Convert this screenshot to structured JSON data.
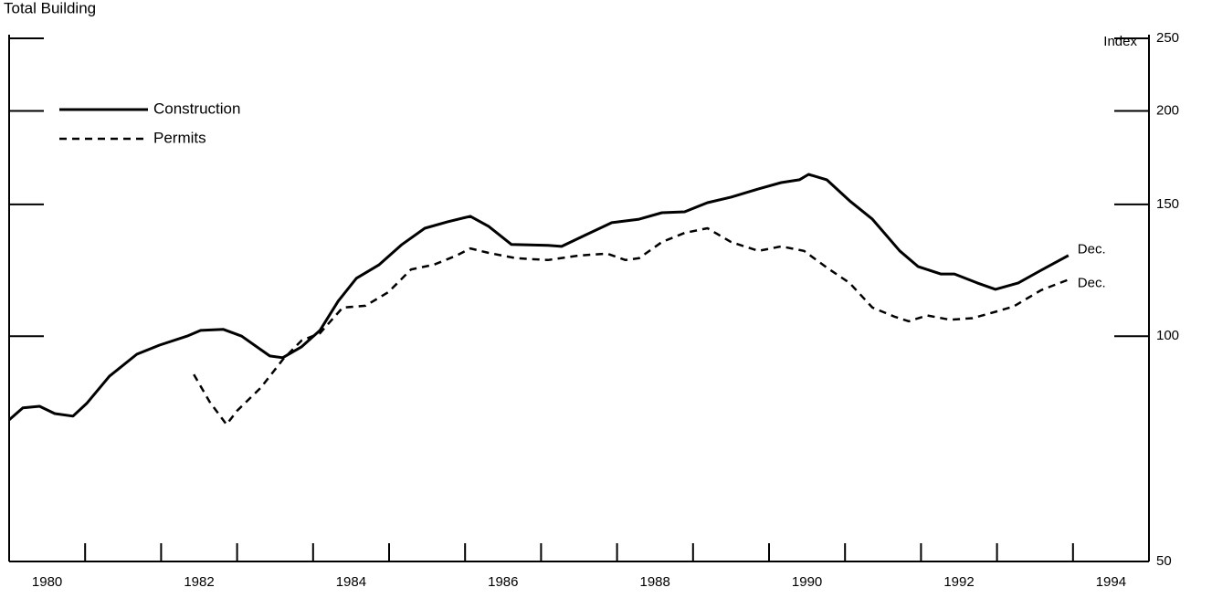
{
  "chart_data": {
    "type": "line",
    "title": "Total Building",
    "y_label": "Index",
    "log_scale": true,
    "xlim": [
      1980,
      1995
    ],
    "xticks": [
      {
        "value": 1980.5,
        "label": "1980"
      },
      {
        "value": 1982.5,
        "label": "1982"
      },
      {
        "value": 1984.5,
        "label": "1984"
      },
      {
        "value": 1986.5,
        "label": "1986"
      },
      {
        "value": 1988.5,
        "label": "1988"
      },
      {
        "value": 1990.5,
        "label": "1990"
      },
      {
        "value": 1992.5,
        "label": "1992"
      },
      {
        "value": 1994.5,
        "label": "1994"
      }
    ],
    "xminor": [
      1981,
      1982,
      1983,
      1984,
      1985,
      1986,
      1987,
      1988,
      1989,
      1990,
      1991,
      1992,
      1993,
      1994
    ],
    "ylim": [
      50,
      250
    ],
    "yticks": [
      50,
      100,
      150,
      200,
      250
    ],
    "series": [
      {
        "name": "Construction",
        "color": "#000000",
        "dash": false,
        "x": [
          1980.0,
          1980.18,
          1980.4,
          1980.6,
          1980.84,
          1981.02,
          1981.32,
          1981.68,
          1981.98,
          1982.34,
          1982.52,
          1982.82,
          1983.06,
          1983.43,
          1983.6,
          1983.85,
          1984.09,
          1984.33,
          1984.57,
          1984.87,
          1985.17,
          1985.47,
          1985.77,
          1986.07,
          1986.31,
          1986.61,
          1987.09,
          1987.27,
          1987.57,
          1987.93,
          1988.29,
          1988.59,
          1988.89,
          1989.19,
          1989.5,
          1989.86,
          1990.16,
          1990.4,
          1990.52,
          1990.76,
          1991.06,
          1991.36,
          1991.72,
          1991.96,
          1992.26,
          1992.44,
          1992.74,
          1992.98,
          1993.28,
          1993.58,
          1993.94
        ],
        "values": [
          77.3,
          80.2,
          80.6,
          78.8,
          78.2,
          81.3,
          88.4,
          94.6,
          97.3,
          100,
          101.8,
          102.1,
          100,
          94.1,
          93.6,
          96.8,
          101.8,
          111.4,
          119.5,
          124.6,
          132.6,
          139.4,
          142.2,
          144.6,
          140.2,
          132.6,
          132.2,
          131.8,
          136.3,
          141.8,
          143.3,
          146.2,
          146.6,
          150.8,
          153.4,
          157.3,
          160.4,
          161.8,
          164.5,
          161.8,
          151.7,
          143.3,
          130.0,
          123.9,
          121.1,
          121.1,
          117.8,
          115.5,
          117.8,
          122.5,
          128.2
        ]
      },
      {
        "name": "Permits",
        "color": "#000000",
        "dash": true,
        "x": [
          1982.43,
          1982.64,
          1982.86,
          1983.0,
          1983.31,
          1983.61,
          1983.85,
          1984.09,
          1984.39,
          1984.69,
          1984.99,
          1985.29,
          1985.59,
          1985.89,
          1986.07,
          1986.31,
          1986.67,
          1987.09,
          1987.51,
          1987.87,
          1988.11,
          1988.29,
          1988.59,
          1988.89,
          1989.19,
          1989.5,
          1989.86,
          1990.16,
          1990.46,
          1990.76,
          1991.06,
          1991.36,
          1991.66,
          1991.84,
          1992.08,
          1992.38,
          1992.68,
          1992.98,
          1993.22,
          1993.58,
          1993.94
        ],
        "values": [
          88.9,
          81.7,
          76.2,
          79.5,
          85.3,
          93.3,
          98.7,
          100.9,
          109.2,
          109.8,
          114.5,
          122.8,
          124.6,
          128.2,
          131.0,
          129.2,
          127.1,
          126.4,
          128.2,
          128.9,
          126.4,
          127.1,
          133.6,
          137.4,
          139.4,
          133.6,
          130.0,
          131.8,
          130.0,
          123.5,
          117.8,
          109.2,
          106.1,
          104.7,
          106.6,
          105.2,
          105.7,
          107.8,
          109.6,
          115.2,
          119.0
        ]
      }
    ],
    "annotations": [
      "Dec.",
      "Dec."
    ]
  }
}
